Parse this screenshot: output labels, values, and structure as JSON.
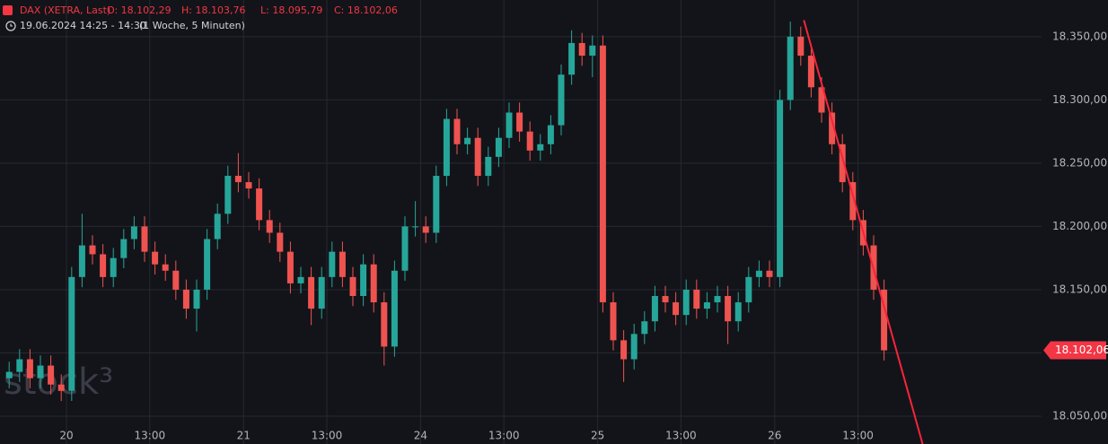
{
  "header": {
    "symbol": "DAX (XETRA, Last)",
    "open": "O: 18.102,29",
    "high": "H: 18.103,76",
    "low": "L: 18.095,79",
    "close": "C: 18.102,06",
    "time": "19.06.2024 14:25 - 14:30",
    "interval": "(1 Woche, 5 Minuten)"
  },
  "chart_data": {
    "type": "candlestick",
    "watermark": "stock³",
    "up_color": "#26a69a",
    "down_color": "#ef5350",
    "grid": true,
    "xlim": [
      -3.19,
      46.81
    ],
    "xticks": [
      {
        "value": 0,
        "label": "20"
      },
      {
        "value": 4,
        "label": "13:00"
      },
      {
        "value": 8.5,
        "label": "21"
      },
      {
        "value": 12.5,
        "label": "13:00"
      },
      {
        "value": 17,
        "label": "24"
      },
      {
        "value": 21,
        "label": "13:00"
      },
      {
        "value": 25.5,
        "label": "25"
      },
      {
        "value": 29.5,
        "label": "13:00"
      },
      {
        "value": 34,
        "label": "26"
      },
      {
        "value": 38,
        "label": "13:00"
      }
    ],
    "ylim": [
      18028,
      18379
    ],
    "yticks": [
      {
        "value": 18050,
        "label": "18.050,00"
      },
      {
        "value": 18100,
        "label": "18.100,00"
      },
      {
        "value": 18150,
        "label": "18.150,00"
      },
      {
        "value": 18200,
        "label": "18.200,00"
      },
      {
        "value": 18250,
        "label": "18.250,00"
      },
      {
        "value": 18300,
        "label": "18.300,00"
      },
      {
        "value": 18350,
        "label": "18.350,00"
      }
    ],
    "last_price": {
      "value": 18102.06,
      "label": "18.102,06"
    },
    "trendline": {
      "color": "#f7243a",
      "x": [
        35.4,
        41.1
      ],
      "y": [
        18363,
        18028
      ]
    },
    "x": [
      -2.75,
      -2.25,
      -1.75,
      -1.25,
      -0.75,
      -0.25,
      0.25,
      0.75,
      1.25,
      1.75,
      2.25,
      2.75,
      3.25,
      3.75,
      4.25,
      4.75,
      5.25,
      5.75,
      6.25,
      6.75,
      7.25,
      7.75,
      8.25,
      8.75,
      9.25,
      9.75,
      10.25,
      10.75,
      11.25,
      11.75,
      12.25,
      12.75,
      13.25,
      13.75,
      14.25,
      14.75,
      15.25,
      15.75,
      16.25,
      16.75,
      17.25,
      17.75,
      18.25,
      18.75,
      19.25,
      19.75,
      20.25,
      20.75,
      21.25,
      21.75,
      22.25,
      22.75,
      23.25,
      23.75,
      24.25,
      24.75,
      25.25,
      25.75,
      26.25,
      26.75,
      27.25,
      27.75,
      28.25,
      28.75,
      29.25,
      29.75,
      30.25,
      30.75,
      31.25,
      31.75,
      32.25,
      32.75,
      33.25,
      33.75,
      34.25,
      34.75,
      35.25,
      35.75,
      36.25,
      36.75,
      37.25,
      37.75,
      38.25,
      38.75,
      39.25
    ],
    "open": [
      18080,
      18085,
      18095,
      18080,
      18090,
      18075,
      18070,
      18160,
      18185,
      18178,
      18160,
      18175,
      18190,
      18200,
      18180,
      18170,
      18165,
      18150,
      18135,
      18150,
      18190,
      18210,
      18240,
      18235,
      18230,
      18205,
      18195,
      18180,
      18155,
      18160,
      18135,
      18160,
      18180,
      18160,
      18145,
      18170,
      18140,
      18105,
      18165,
      18200,
      18200,
      18195,
      18240,
      18285,
      18265,
      18270,
      18240,
      18255,
      18270,
      18290,
      18275,
      18260,
      18265,
      18280,
      18320,
      18345,
      18335,
      18343,
      18140,
      18110,
      18095,
      18115,
      18125,
      18145,
      18140,
      18130,
      18150,
      18135,
      18140,
      18145,
      18125,
      18140,
      18160,
      18165,
      18160,
      18300,
      18350,
      18335,
      18310,
      18290,
      18265,
      18235,
      18205,
      18185,
      18150
    ],
    "high": [
      18093,
      18103,
      18103,
      18098,
      18098,
      18083,
      18168,
      18210,
      18193,
      18186,
      18183,
      18198,
      18208,
      18208,
      18188,
      18178,
      18173,
      18158,
      18158,
      18198,
      18218,
      18248,
      18258,
      18243,
      18238,
      18213,
      18203,
      18188,
      18168,
      18168,
      18168,
      18188,
      18188,
      18168,
      18178,
      18178,
      18148,
      18173,
      18208,
      18220,
      18208,
      18248,
      18293,
      18293,
      18278,
      18278,
      18263,
      18278,
      18298,
      18298,
      18283,
      18273,
      18288,
      18328,
      18355,
      18353,
      18351,
      18351,
      18148,
      18118,
      18123,
      18133,
      18153,
      18153,
      18148,
      18158,
      18158,
      18148,
      18153,
      18153,
      18148,
      18168,
      18173,
      18173,
      18308,
      18362,
      18358,
      18343,
      18318,
      18298,
      18273,
      18243,
      18213,
      18193,
      18158
    ],
    "low": [
      18072,
      18077,
      18072,
      18072,
      18067,
      18062,
      18062,
      18152,
      18170,
      18152,
      18152,
      18167,
      18182,
      18172,
      18162,
      18157,
      18142,
      18127,
      18117,
      18142,
      18182,
      18202,
      18227,
      18222,
      18197,
      18187,
      18172,
      18147,
      18147,
      18122,
      18127,
      18152,
      18152,
      18137,
      18137,
      18132,
      18090,
      18097,
      18157,
      18192,
      18187,
      18187,
      18232,
      18257,
      18257,
      18232,
      18232,
      18247,
      18262,
      18267,
      18252,
      18252,
      18257,
      18272,
      18312,
      18327,
      18318,
      18132,
      18102,
      18077,
      18087,
      18107,
      18117,
      18132,
      18122,
      18122,
      18127,
      18127,
      18132,
      18107,
      18117,
      18132,
      18152,
      18152,
      18152,
      18292,
      18327,
      18302,
      18282,
      18257,
      18227,
      18197,
      18177,
      18142,
      18094
    ],
    "close": [
      18085,
      18095,
      18080,
      18090,
      18075,
      18070,
      18160,
      18185,
      18178,
      18160,
      18175,
      18190,
      18200,
      18180,
      18170,
      18165,
      18150,
      18135,
      18150,
      18190,
      18210,
      18240,
      18235,
      18230,
      18205,
      18195,
      18180,
      18155,
      18160,
      18135,
      18160,
      18180,
      18160,
      18145,
      18170,
      18140,
      18105,
      18165,
      18200,
      18200,
      18195,
      18240,
      18285,
      18265,
      18270,
      18240,
      18255,
      18270,
      18290,
      18275,
      18260,
      18265,
      18280,
      18320,
      18345,
      18335,
      18343,
      18140,
      18110,
      18095,
      18115,
      18125,
      18145,
      18140,
      18130,
      18150,
      18135,
      18140,
      18145,
      18125,
      18140,
      18160,
      18165,
      18160,
      18300,
      18350,
      18335,
      18310,
      18290,
      18265,
      18235,
      18205,
      18185,
      18150,
      18102.06
    ]
  }
}
